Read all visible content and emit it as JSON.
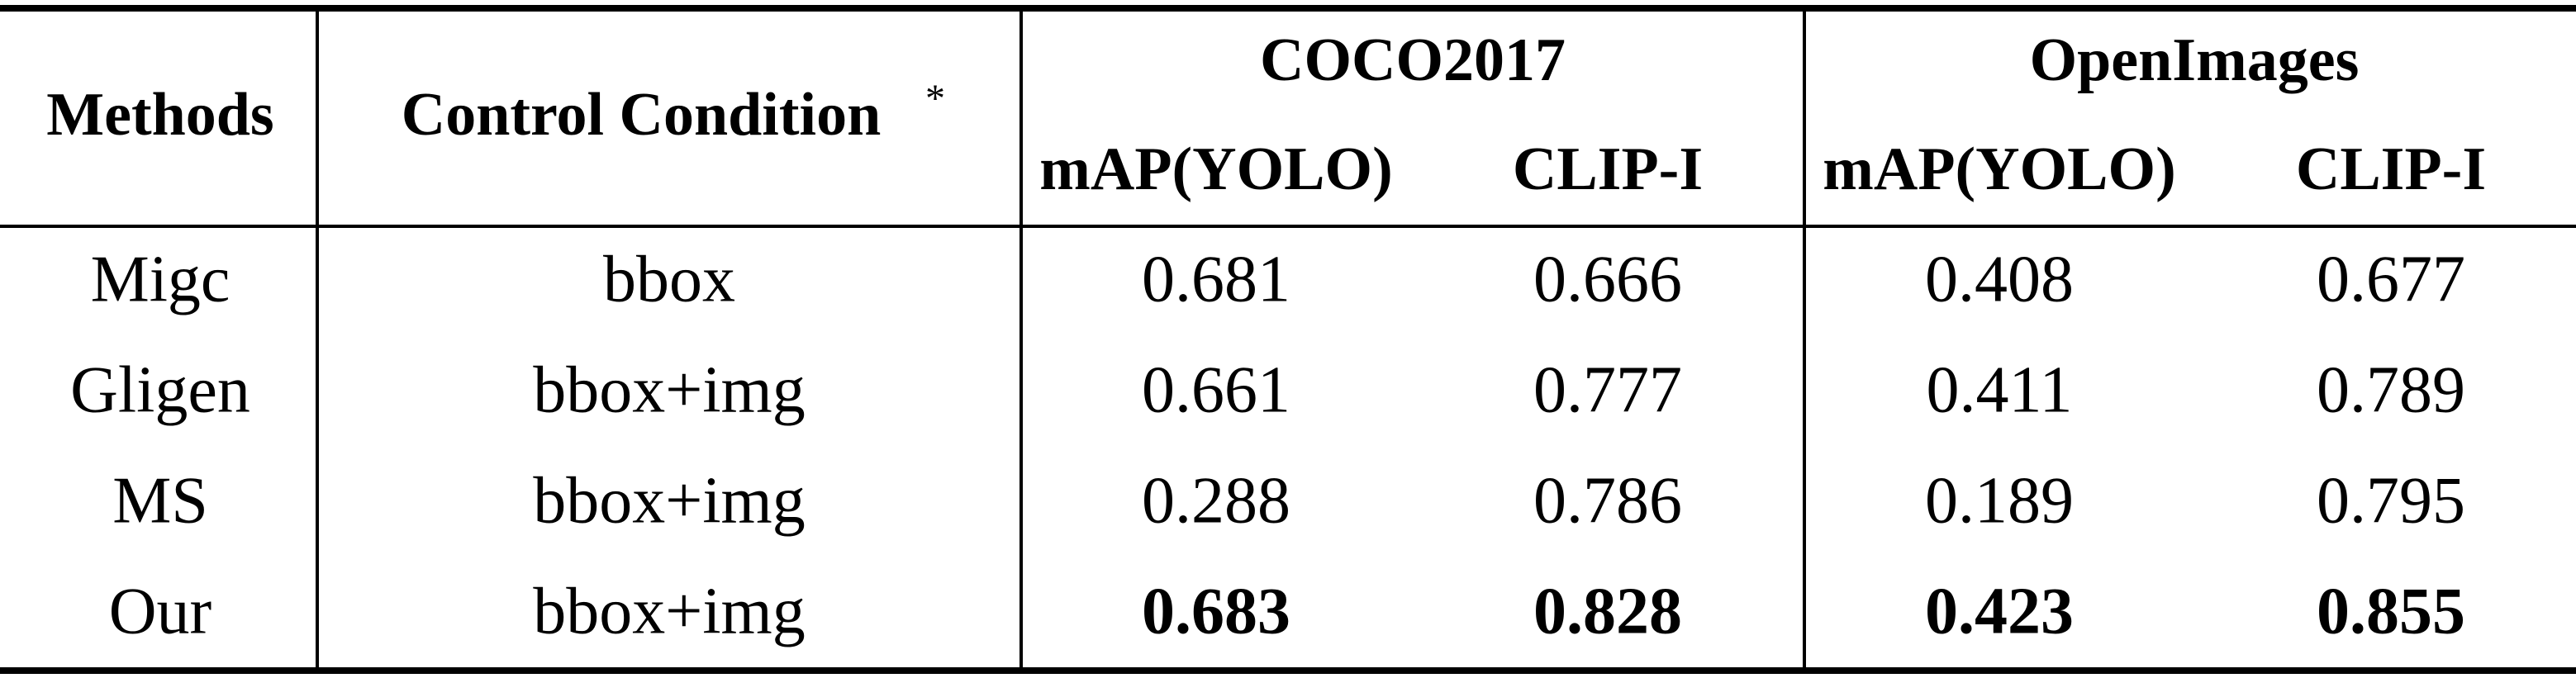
{
  "table": {
    "header": {
      "methods": "Methods",
      "condition": "Control Condition",
      "footnote_mark": "*",
      "groups": [
        "COCO2017",
        "OpenImages"
      ],
      "subheaders": [
        "mAP(YOLO)",
        "CLIP-I",
        "mAP(YOLO)",
        "CLIP-I"
      ]
    },
    "rows": [
      [
        "Migc",
        "bbox",
        "0.681",
        "0.666",
        "0.408",
        "0.677"
      ],
      [
        "Gligen",
        "bbox+img",
        "0.661",
        "0.777",
        "0.411",
        "0.789"
      ],
      [
        "MS",
        "bbox+img",
        "0.288",
        "0.786",
        "0.189",
        "0.795"
      ],
      [
        "Our",
        "bbox+img",
        "0.683",
        "0.828",
        "0.423",
        "0.855"
      ]
    ]
  }
}
